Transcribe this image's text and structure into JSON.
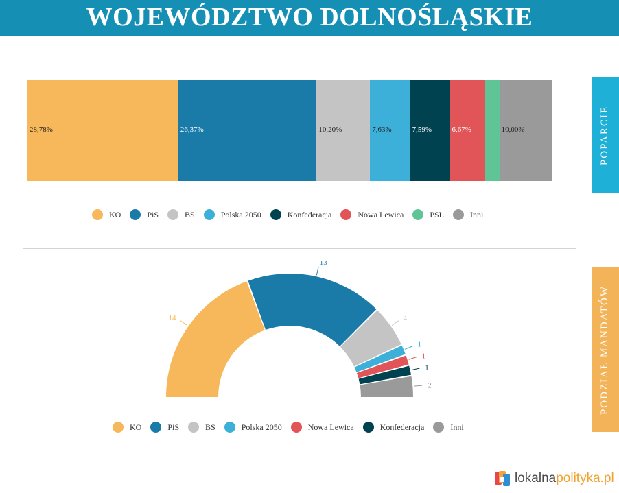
{
  "header": {
    "title": "WOJEWÓDZTWO DOLNOŚLĄSKIE"
  },
  "side_tabs": {
    "support": "POPARCIE",
    "seats": "PODZIAŁ MANDATÓW"
  },
  "logo": {
    "part1": "lokalna",
    "part2": "polityka.pl"
  },
  "chart_data": [
    {
      "type": "bar",
      "subtype": "stacked-100",
      "categories": [
        "KO",
        "PiS",
        "BS",
        "Polska 2050",
        "Konfederacja",
        "Nowa Lewica",
        "PSL",
        "Inni"
      ],
      "values": [
        28.78,
        26.37,
        10.2,
        7.63,
        7.59,
        6.67,
        2.76,
        10.0
      ],
      "data_labels": [
        "28,78%",
        "26,37%",
        "10,20%",
        "7,63%",
        "7,59%",
        "6,67%",
        "",
        "10,00%"
      ],
      "colors": [
        "#f6b85b",
        "#1a7ba9",
        "#c4c4c4",
        "#3cb0d8",
        "#00424f",
        "#e15457",
        "#5fc496",
        "#9a9a9a"
      ],
      "label_colors": [
        "#222222",
        "#ffffff",
        "#222222",
        "#222222",
        "#ffffff",
        "#ffffff",
        "#222222",
        "#222222"
      ],
      "legend": [
        {
          "label": "KO",
          "color": "#f6b85b"
        },
        {
          "label": "PiS",
          "color": "#1a7ba9"
        },
        {
          "label": "BS",
          "color": "#c4c4c4"
        },
        {
          "label": "Polska 2050",
          "color": "#3cb0d8"
        },
        {
          "label": "Konfederacja",
          "color": "#00424f"
        },
        {
          "label": "Nowa Lewica",
          "color": "#e15457"
        },
        {
          "label": "PSL",
          "color": "#5fc496"
        },
        {
          "label": "Inni",
          "color": "#9a9a9a"
        }
      ],
      "legend_position": "bottom"
    },
    {
      "type": "pie",
      "subtype": "semicircle-donut",
      "categories": [
        "KO",
        "PiS",
        "BS",
        "Polska 2050",
        "Nowa Lewica",
        "Konfederacja",
        "Inni"
      ],
      "values": [
        14,
        13,
        4,
        1,
        1,
        1,
        2
      ],
      "colors": [
        "#f6b85b",
        "#1a7ba9",
        "#c4c4c4",
        "#3cb0d8",
        "#e15457",
        "#00424f",
        "#9a9a9a"
      ],
      "legend": [
        {
          "label": "KO",
          "color": "#f6b85b"
        },
        {
          "label": "PiS",
          "color": "#1a7ba9"
        },
        {
          "label": "BS",
          "color": "#c4c4c4"
        },
        {
          "label": "Polska 2050",
          "color": "#3cb0d8"
        },
        {
          "label": "Nowa Lewica",
          "color": "#e15457"
        },
        {
          "label": "Konfederacja",
          "color": "#00424f"
        },
        {
          "label": "Inni",
          "color": "#9a9a9a"
        }
      ],
      "legend_position": "bottom"
    }
  ]
}
